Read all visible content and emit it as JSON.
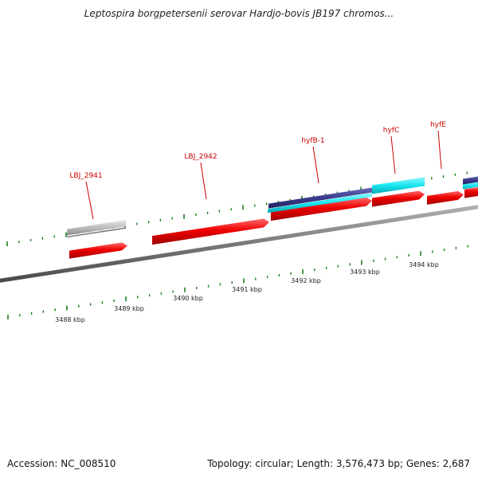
{
  "title": "Leptospira borgpetersenii serovar Hardjo-bovis JB197 chromos...",
  "footer": {
    "accession": "Accession: NC_008510",
    "summary": "Topology: circular; Length: 3,576,473 bp; Genes: 2,687"
  },
  "colors": {
    "backbone": "#7a7a7a",
    "gene": "#e80000",
    "cds_cyan": "#18e6f0",
    "cds_navy": "#3a3a8c",
    "gray_feature": "#bdbdbd",
    "tick": "#1e7d1e",
    "label": "#cc0000"
  },
  "scale_labels": [
    "3488 kbp",
    "3489 kbp",
    "3490 kbp",
    "3491 kbp",
    "3492 kbp",
    "3493 kbp",
    "3494 kbp"
  ],
  "genes": [
    {
      "name": "LBJ_2941"
    },
    {
      "name": "LBJ_2942"
    },
    {
      "name": "hyfB-1"
    },
    {
      "name": "hyfC"
    },
    {
      "name": "hyfE"
    }
  ]
}
